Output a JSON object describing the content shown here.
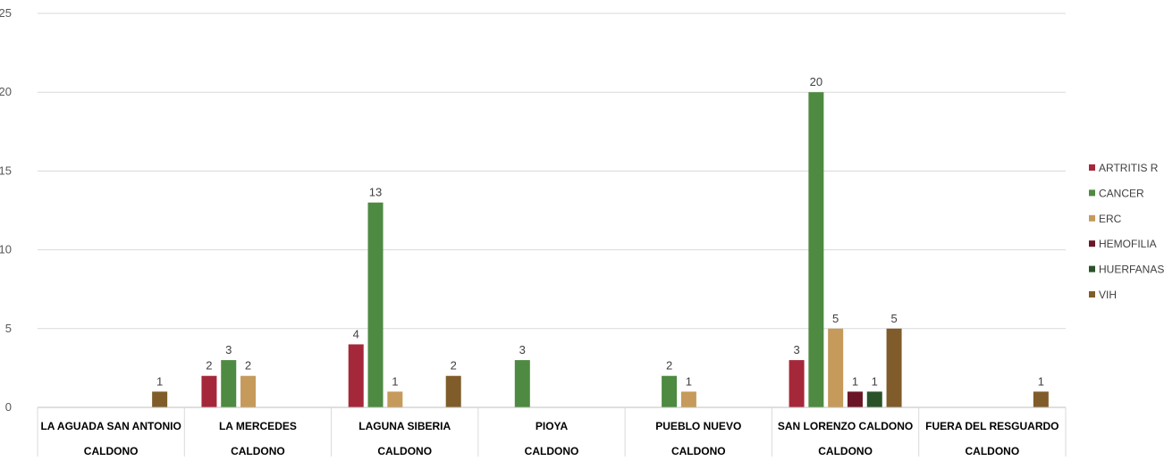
{
  "chart_data": {
    "type": "bar",
    "categories": [
      [
        "LA AGUADA SAN ANTONIO",
        "CALDONO"
      ],
      [
        "LA MERCEDES",
        "CALDONO"
      ],
      [
        "LAGUNA SIBERIA",
        "CALDONO"
      ],
      [
        "PIOYA",
        "CALDONO"
      ],
      [
        "PUEBLO NUEVO",
        "CALDONO"
      ],
      [
        "SAN LORENZO CALDONO",
        "CALDONO"
      ],
      [
        "FUERA DEL RESGUARDO",
        "CALDONO"
      ]
    ],
    "series": [
      {
        "name": "ARTRITIS R",
        "color": "#A5283A",
        "values": [
          0,
          2,
          4,
          0,
          0,
          3,
          0
        ]
      },
      {
        "name": "CANCER",
        "color": "#4E8A41",
        "values": [
          0,
          3,
          13,
          3,
          2,
          20,
          0
        ]
      },
      {
        "name": "ERC",
        "color": "#C59A5A",
        "values": [
          0,
          2,
          1,
          0,
          1,
          5,
          0
        ]
      },
      {
        "name": "HEMOFILIA",
        "color": "#6B1626",
        "values": [
          0,
          0,
          0,
          0,
          0,
          1,
          0
        ]
      },
      {
        "name": "HUERFANAS",
        "color": "#2A5228",
        "values": [
          0,
          0,
          0,
          0,
          0,
          1,
          0
        ]
      },
      {
        "name": "VIH",
        "color": "#7F5C2A",
        "values": [
          1,
          0,
          2,
          0,
          0,
          5,
          1
        ]
      }
    ],
    "ylim": [
      0,
      25
    ],
    "yticks": [
      0,
      5,
      10,
      15,
      20,
      25
    ],
    "grid": true,
    "legend": "right",
    "title": "",
    "xlabel": "",
    "ylabel": ""
  }
}
